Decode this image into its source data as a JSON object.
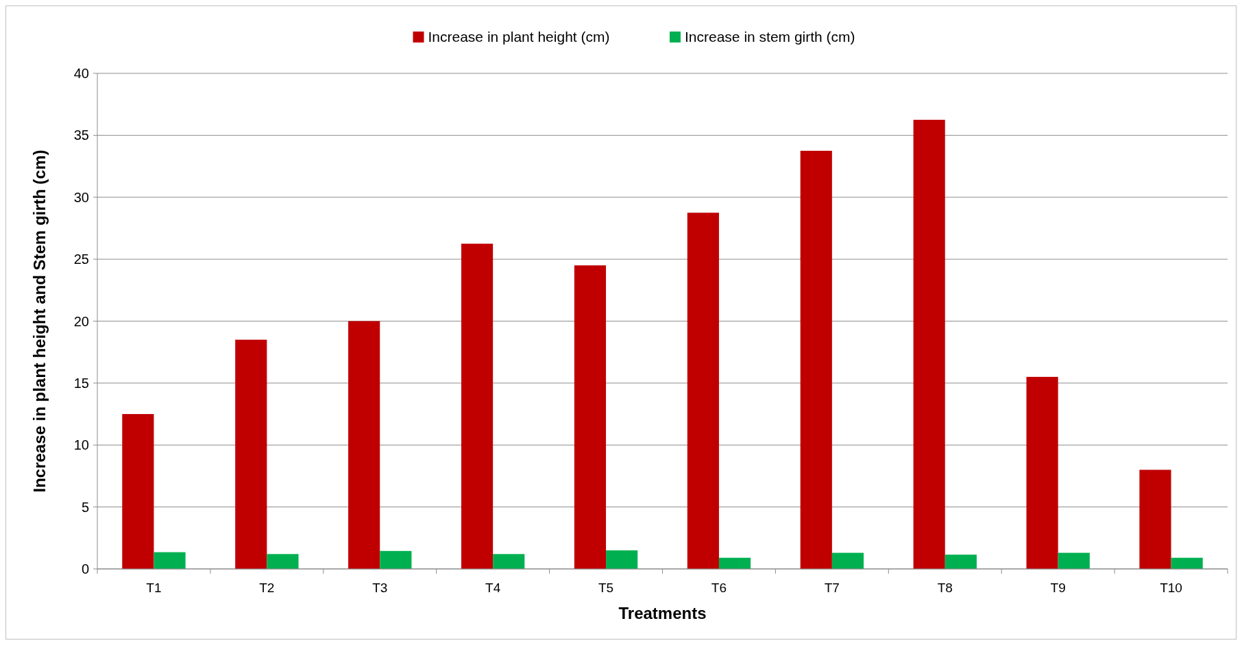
{
  "chart_data": {
    "type": "bar",
    "xlabel": "Treatments",
    "ylabel": "Increase in plant height and Stem girth (cm)",
    "categories": [
      "T1",
      "T2",
      "T3",
      "T4",
      "T5",
      "T6",
      "T7",
      "T8",
      "T9",
      "T10"
    ],
    "series": [
      {
        "name": "Increase in plant height (cm)",
        "color": "#c00000",
        "values": [
          12.5,
          18.5,
          20,
          26.25,
          24.5,
          28.75,
          33.75,
          36.25,
          15.5,
          8
        ]
      },
      {
        "name": "Increase in stem girth (cm)",
        "color": "#00b050",
        "values": [
          1.35,
          1.2,
          1.45,
          1.2,
          1.5,
          0.9,
          1.3,
          1.15,
          1.3,
          0.9
        ]
      }
    ],
    "ylim": [
      0,
      40
    ],
    "yticks": [
      0,
      5,
      10,
      15,
      20,
      25,
      30,
      35,
      40
    ],
    "grid": "y",
    "legend": "top"
  }
}
